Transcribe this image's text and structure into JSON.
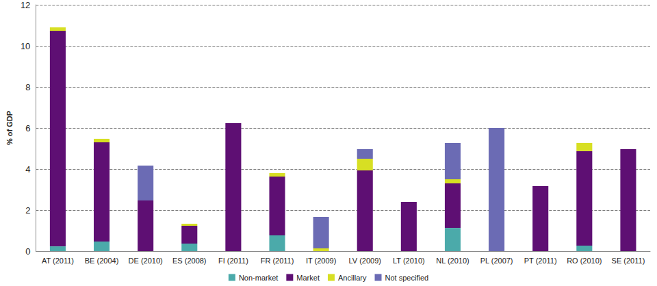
{
  "chart_data": {
    "type": "bar",
    "stacked": true,
    "grid": true,
    "legend": "bottom",
    "y_label": "% of GDP",
    "categories": [
      "AT (2011)",
      "BE (2004)",
      "DE (2010)",
      "ES (2008)",
      "FI (2011)",
      "FR (2011)",
      "IT (2009)",
      "LV (2009)",
      "LT (2010)",
      "NL (2010)",
      "PL (2007)",
      "PT (2011)",
      "RO (2010)",
      "SE (2011)"
    ],
    "series": [
      {
        "name": "Non-market",
        "color": "#4baaaa",
        "values": [
          0.23,
          0.47,
          0,
          0.37,
          0,
          0.77,
          0,
          0,
          0,
          1.13,
          0,
          0,
          0.27,
          0
        ]
      },
      {
        "name": "Market",
        "color": "#5e0f73",
        "values": [
          10.5,
          4.83,
          2.47,
          0.86,
          6.23,
          2.86,
          0,
          3.93,
          2.4,
          2.17,
          0,
          3.17,
          4.6,
          4.97
        ]
      },
      {
        "name": "Ancillary",
        "color": "#d7df23",
        "values": [
          0.17,
          0.17,
          0,
          0.1,
          0,
          0.17,
          0.13,
          0.57,
          0,
          0.2,
          0,
          0,
          0.4,
          0
        ]
      },
      {
        "name": "Not specified",
        "color": "#6b6bb4",
        "values": [
          0,
          0,
          1.7,
          0,
          0,
          0,
          1.54,
          0.47,
          0,
          1.77,
          6.0,
          0,
          0,
          0
        ]
      }
    ],
    "ylim": [
      0,
      12
    ],
    "yticks": [
      0,
      2,
      4,
      6,
      8,
      10,
      12
    ]
  }
}
